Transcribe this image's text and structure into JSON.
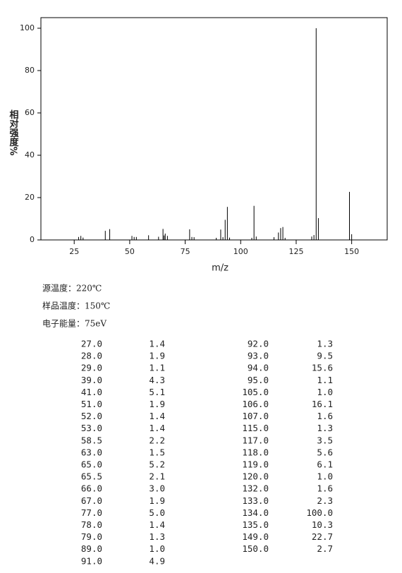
{
  "chart_data": {
    "type": "stem",
    "y_label": "相对强度%",
    "x_label": "m/z",
    "x": [
      27,
      28,
      29,
      39,
      41,
      51,
      52,
      53,
      58.5,
      63,
      65,
      65.5,
      66,
      67,
      77,
      78,
      79,
      89,
      91,
      92,
      93,
      94,
      95,
      105,
      106,
      107,
      115,
      117,
      118,
      119,
      120,
      132,
      133,
      134,
      135,
      149,
      150
    ],
    "x_labels": [
      "27.0",
      "28.0",
      "29.0",
      "39.0",
      "41.0",
      "51.0",
      "52.0",
      "53.0",
      "58.5",
      "63.0",
      "65.0",
      "65.5",
      "66.0",
      "67.0",
      "77.0",
      "78.0",
      "79.0",
      "89.0",
      "91.0",
      "92.0",
      "93.0",
      "94.0",
      "95.0",
      "105.0",
      "106.0",
      "107.0",
      "115.0",
      "117.0",
      "118.0",
      "119.0",
      "120.0",
      "132.0",
      "133.0",
      "134.0",
      "135.0",
      "149.0",
      "150.0"
    ],
    "values": [
      1.4,
      1.9,
      1.1,
      4.3,
      5.1,
      1.9,
      1.4,
      1.4,
      2.2,
      1.5,
      5.2,
      2.1,
      3.0,
      1.9,
      5.0,
      1.4,
      1.3,
      1.0,
      4.9,
      1.3,
      9.5,
      15.6,
      1.1,
      1.0,
      16.1,
      1.6,
      1.3,
      3.5,
      5.6,
      6.1,
      1.0,
      1.6,
      2.3,
      100.0,
      10.3,
      22.7,
      2.7
    ],
    "value_labels": [
      "1.4",
      "1.9",
      "1.1",
      "4.3",
      "5.1",
      "1.9",
      "1.4",
      "1.4",
      "2.2",
      "1.5",
      "5.2",
      "2.1",
      "3.0",
      "1.9",
      "5.0",
      "1.4",
      "1.3",
      "1.0",
      "4.9",
      "1.3",
      "9.5",
      "15.6",
      "1.1",
      "1.0",
      "16.1",
      "1.6",
      "1.3",
      "3.5",
      "5.6",
      "6.1",
      "1.0",
      "1.6",
      "2.3",
      "100.0",
      "10.3",
      "22.7",
      "2.7"
    ],
    "color": "#000000",
    "xlim": [
      10,
      166
    ],
    "ylim": [
      0,
      105
    ],
    "xticks": [
      25,
      50,
      75,
      100,
      125,
      150
    ],
    "yticks": [
      0,
      20,
      40,
      60,
      80,
      100
    ]
  },
  "info": [
    "源温度：220℃",
    "样品温度：150℃",
    "电子能量：75eV"
  ]
}
